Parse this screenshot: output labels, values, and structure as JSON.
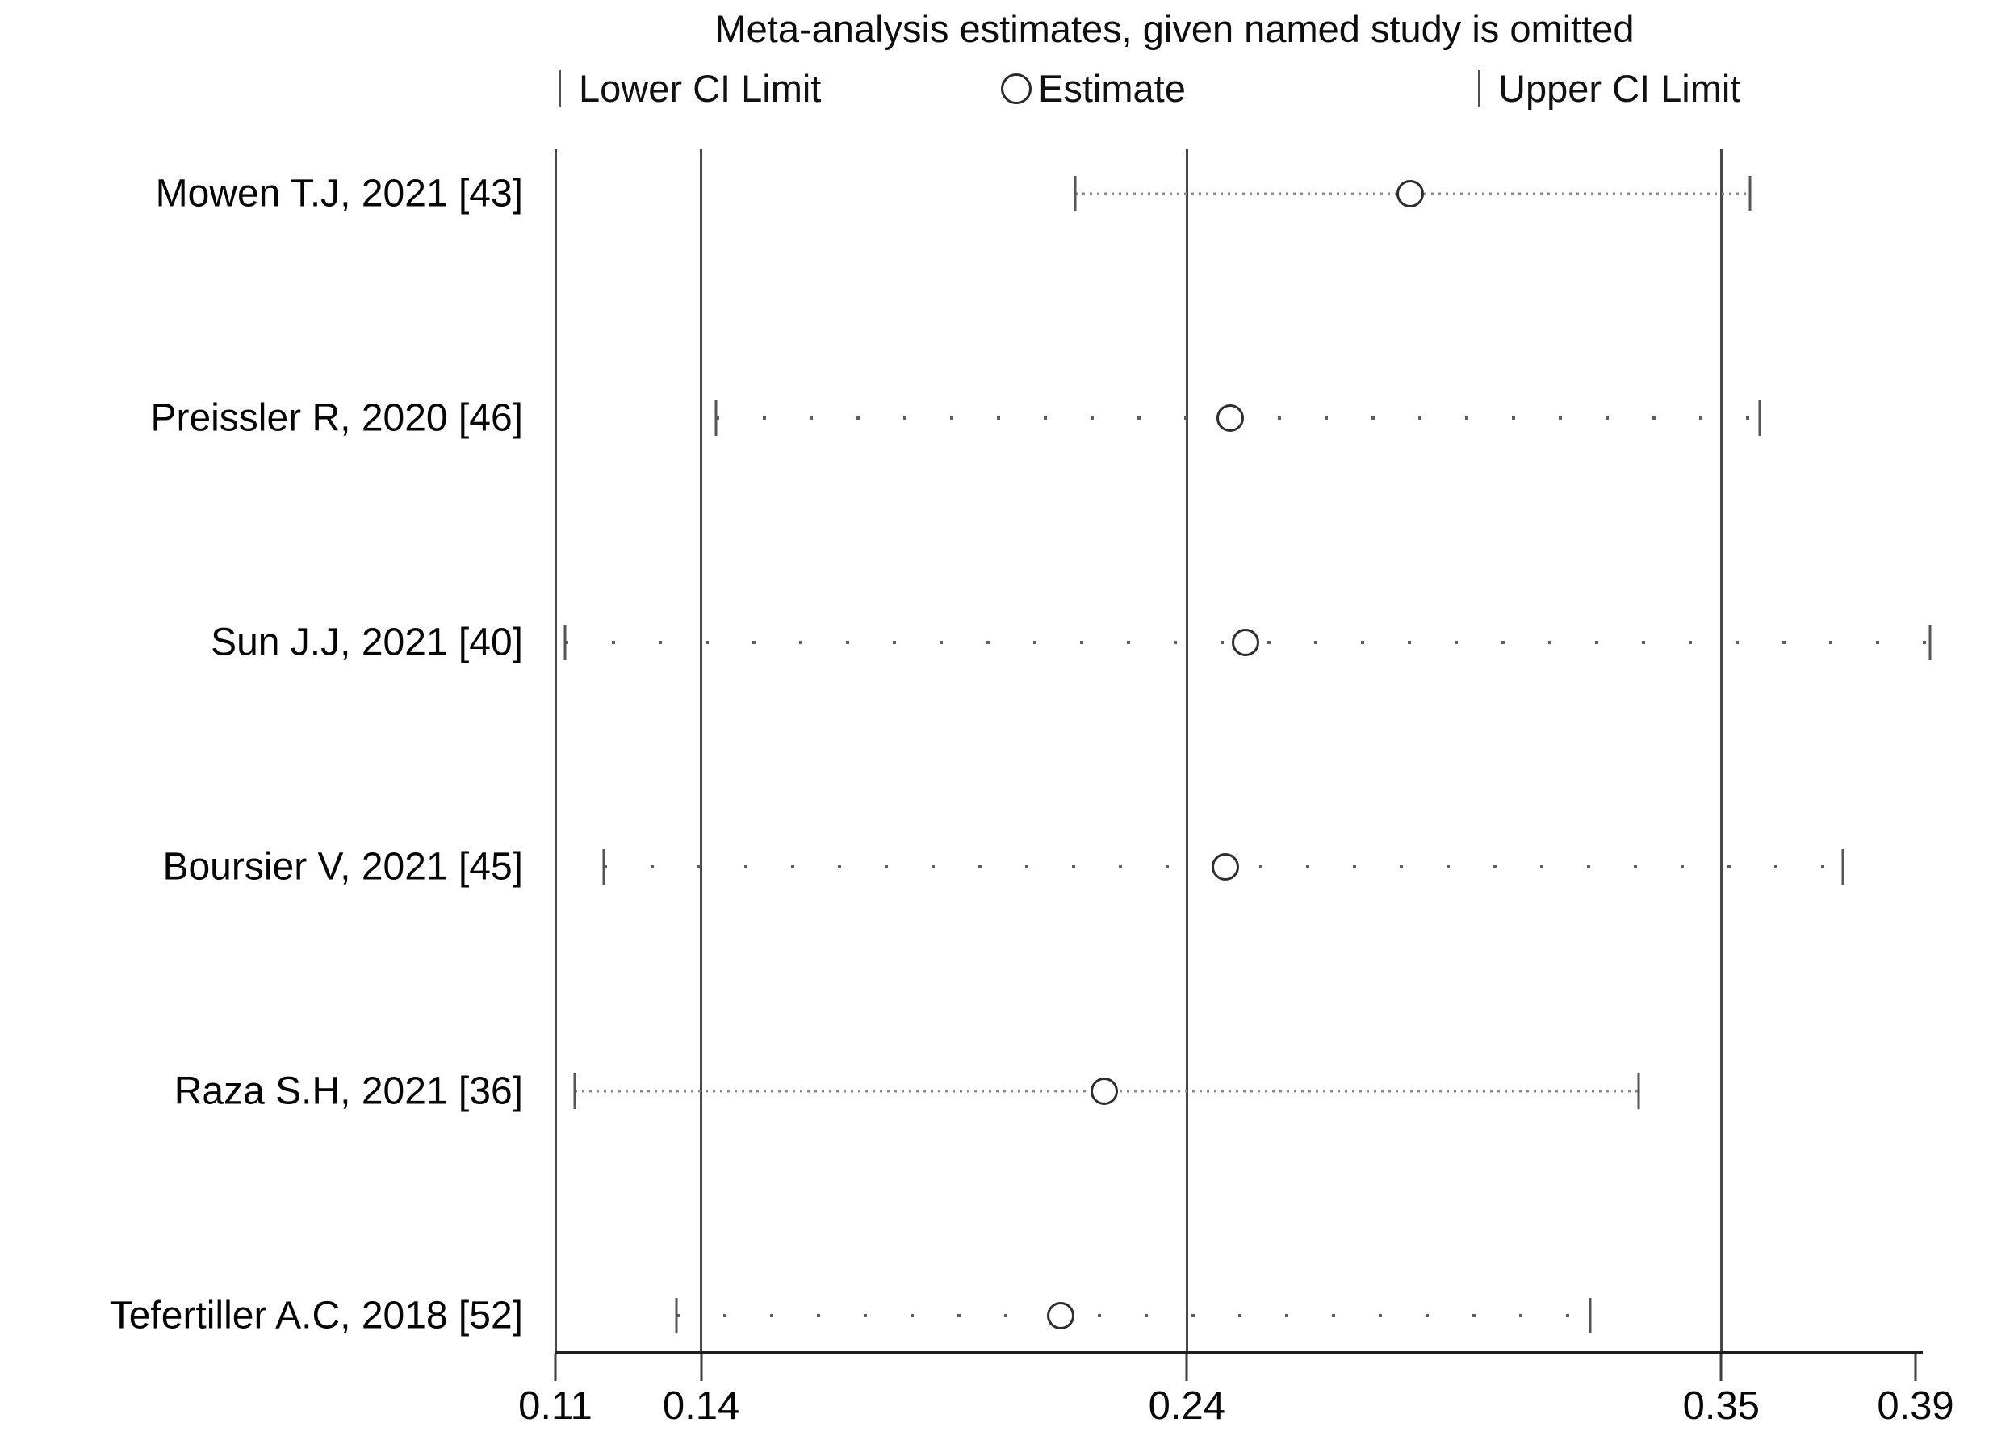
{
  "title": "Meta-analysis estimates, given named study is omitted",
  "legend": {
    "lower_label": "Lower CI Limit",
    "estimate_label": "Estimate",
    "upper_label": "Upper CI Limit"
  },
  "colors": {
    "ink": "#111111",
    "gridline": "#474747",
    "tick": "#555555",
    "circle_stroke": "#2d2d2d"
  },
  "chart_data": {
    "type": "scatter",
    "subtype": "leave-one-out-sensitivity-forest",
    "title": "Meta-analysis estimates, given named study is omitted",
    "xlabel": "",
    "ylabel": "",
    "x_axis": {
      "min": 0.11,
      "max": 0.39,
      "tick_values": [
        0.11,
        0.14,
        0.24,
        0.35,
        0.39
      ],
      "tick_labels": [
        "0.11",
        "0.14",
        "0.24",
        "0.35",
        "0.39"
      ],
      "gridline_values": [
        0.11,
        0.14,
        0.24,
        0.35
      ]
    },
    "grid": "vertical-reference-lines",
    "legend_position": "top",
    "studies": [
      {
        "label": "Mowen T.J, 2021 [43]",
        "lower": 0.217,
        "estimate": 0.286,
        "upper": 0.356,
        "line_style": "dense"
      },
      {
        "label": "Preissler R, 2020 [46]",
        "lower": 0.143,
        "estimate": 0.249,
        "upper": 0.358,
        "line_style": "sparse"
      },
      {
        "label": "Sun J.J, 2021 [40]",
        "lower": 0.112,
        "estimate": 0.252,
        "upper": 0.393,
        "line_style": "sparse"
      },
      {
        "label": "Boursier V, 2021 [45]",
        "lower": 0.12,
        "estimate": 0.248,
        "upper": 0.375,
        "line_style": "sparse"
      },
      {
        "label": "Raza S.H, 2021 [36]",
        "lower": 0.114,
        "estimate": 0.223,
        "upper": 0.333,
        "line_style": "dense"
      },
      {
        "label": "Tefertiller A.C, 2018 [52]",
        "lower": 0.135,
        "estimate": 0.214,
        "upper": 0.323,
        "line_style": "sparse"
      }
    ]
  }
}
